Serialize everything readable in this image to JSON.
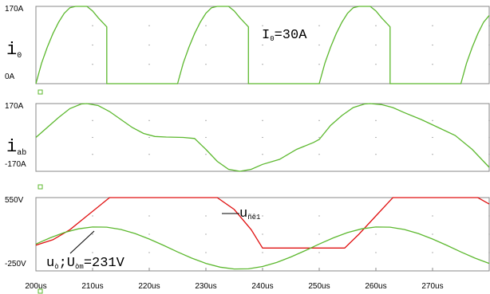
{
  "chart_data": [
    {
      "type": "line",
      "ylabel": [
        "i",
        "0"
      ],
      "annotations": [
        [
          "I",
          "0",
          "=30A"
        ]
      ],
      "xlim": [
        200,
        280
      ],
      "ylim": [
        0,
        170
      ],
      "grid": true,
      "yticks": [
        {
          "value": 170,
          "label": "170A"
        },
        {
          "value": 0,
          "label": "0A"
        }
      ],
      "series": [
        {
          "color": "#5cb82e",
          "x": [
            200,
            201,
            202,
            203,
            204,
            205,
            206,
            207,
            209,
            210,
            211,
            212.5,
            212.5,
            225,
            226,
            227,
            228,
            229,
            230,
            231,
            232,
            234,
            235,
            236,
            237.5,
            237.5,
            250,
            251,
            252,
            253,
            254,
            255,
            256,
            257,
            259,
            260,
            261,
            262.5,
            262.5,
            275,
            276,
            277,
            278,
            279,
            280
          ],
          "values": [
            0,
            45,
            80,
            110,
            135,
            155,
            167,
            170,
            170,
            160,
            145,
            125,
            0,
            0,
            45,
            80,
            110,
            135,
            155,
            167,
            170,
            170,
            160,
            145,
            125,
            0,
            0,
            45,
            80,
            110,
            135,
            155,
            167,
            170,
            170,
            160,
            145,
            125,
            0,
            0,
            45,
            80,
            110,
            135,
            150
          ]
        }
      ]
    },
    {
      "type": "line",
      "ylabel": [
        "i",
        "ab"
      ],
      "annotations": [],
      "xlim": [
        200,
        280
      ],
      "ylim": [
        -170,
        170
      ],
      "grid": true,
      "yticks": [
        {
          "value": 170,
          "label": "170A"
        },
        {
          "value": -170,
          "label": "-170A"
        }
      ],
      "series": [
        {
          "color": "#5cb82e",
          "x": [
            200,
            202,
            204,
            206,
            208,
            209,
            211,
            213,
            215,
            217,
            219,
            221,
            223,
            226,
            228,
            230,
            232,
            234,
            236,
            238,
            240,
            243,
            246,
            249,
            250,
            252,
            254,
            256,
            258,
            259,
            261,
            263,
            265,
            268,
            271,
            274,
            277,
            280
          ],
          "values": [
            0,
            50,
            100,
            145,
            168,
            170,
            160,
            130,
            90,
            50,
            20,
            5,
            2,
            0,
            -5,
            -60,
            -120,
            -160,
            -170,
            -160,
            -135,
            -110,
            -60,
            -25,
            -10,
            60,
            110,
            150,
            168,
            170,
            165,
            150,
            125,
            90,
            50,
            10,
            -60,
            -150
          ]
        }
      ]
    },
    {
      "type": "line",
      "ylabel": [],
      "annotations": [
        [
          "u",
          "ñê1"
        ],
        [
          "u",
          "ò",
          ";U",
          "òm",
          "=231V"
        ]
      ],
      "xlim": [
        200,
        280
      ],
      "ylim": [
        -250,
        550
      ],
      "grid": true,
      "yticks": [
        {
          "value": 550,
          "label": "550V"
        },
        {
          "value": -250,
          "label": "-250V"
        }
      ],
      "xticks": [
        {
          "value": 200,
          "label": "200us"
        },
        {
          "value": 210,
          "label": "210us"
        },
        {
          "value": 220,
          "label": "220us"
        },
        {
          "value": 230,
          "label": "230us"
        },
        {
          "value": 240,
          "label": "240us"
        },
        {
          "value": 250,
          "label": "250us"
        },
        {
          "value": 260,
          "label": "260us"
        },
        {
          "value": 270,
          "label": "270us"
        }
      ],
      "series": [
        {
          "color": "#e01010",
          "x": [
            200,
            203,
            206,
            209,
            213,
            232,
            235,
            238,
            240,
            254.5,
            257,
            260,
            263,
            278,
            280
          ],
          "values": [
            30,
            90,
            200,
            350,
            550,
            550,
            420,
            200,
            0,
            0,
            150,
            350,
            550,
            550,
            480
          ]
        },
        {
          "color": "#5cb82e",
          "x": [
            200,
            202.5,
            205,
            207.5,
            210,
            212.5,
            215,
            217.5,
            220,
            222.5,
            225,
            227.5,
            230,
            232.5,
            235,
            237.5,
            240,
            242.5,
            245,
            247.5,
            250,
            252.5,
            255,
            257.5,
            260,
            262.5,
            265,
            267.5,
            270,
            272.5,
            275,
            277.5,
            280
          ],
          "values": [
            43,
            111,
            168,
            209,
            229,
            227,
            202,
            158,
            98,
            29,
            -43,
            -111,
            -168,
            -209,
            -229,
            -227,
            -202,
            -158,
            -98,
            -29,
            43,
            111,
            168,
            209,
            229,
            227,
            202,
            158,
            98,
            29,
            -43,
            -111,
            -168
          ]
        }
      ]
    }
  ]
}
